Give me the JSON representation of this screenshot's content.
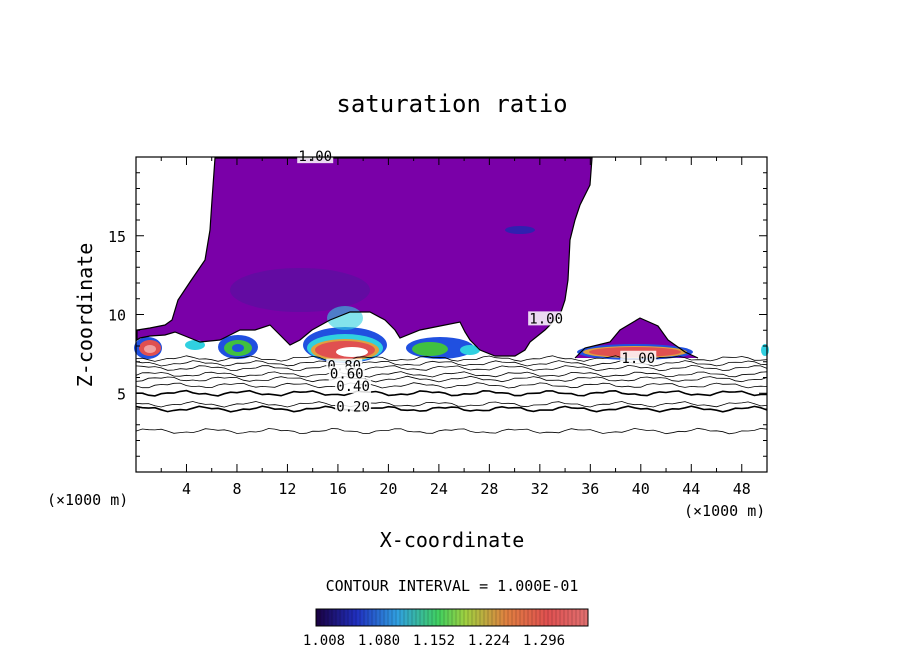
{
  "chart_data": {
    "type": "contour",
    "title": "saturation ratio",
    "xlabel": "X-coordinate",
    "ylabel": "Z-coordinate",
    "x_unit_left": "(×1000 m)",
    "x_unit_right": "(×1000 m)",
    "xlim": [
      0,
      50
    ],
    "ylim": [
      0,
      20
    ],
    "x_ticks": [
      4,
      8,
      12,
      16,
      20,
      24,
      28,
      32,
      36,
      40,
      44,
      48
    ],
    "y_ticks": [
      5,
      10,
      15
    ],
    "contour_interval_text": "CONTOUR INTERVAL = 1.000E-01",
    "colorbar": {
      "tick_labels": [
        "1.008",
        "1.080",
        "1.152",
        "1.224",
        "1.296"
      ],
      "colors": [
        "#1a0040",
        "#2040c0",
        "#30a0e0",
        "#40d060",
        "#a0e040",
        "#e0a040",
        "#e05050",
        "#e07070"
      ]
    },
    "contour_labels": [
      {
        "text": "1.00",
        "x": 14.2,
        "y": 19.8
      },
      {
        "text": "1.00",
        "x": 32.5,
        "y": 9.5
      },
      {
        "text": "1.00",
        "x": 39.8,
        "y": 7.0
      },
      {
        "text": "0.80",
        "x": 16.5,
        "y": 6.5
      },
      {
        "text": "0.60",
        "x": 16.7,
        "y": 6.0
      },
      {
        "text": "0.40",
        "x": 17.2,
        "y": 5.2
      },
      {
        "text": "0.20",
        "x": 17.2,
        "y": 3.9
      }
    ],
    "contour_levels": [
      0.2,
      0.4,
      0.6,
      0.8,
      1.0
    ],
    "region_colors": {
      "cloud": "#7a00a8",
      "cloud_dark": "#5a10a0",
      "blue": "#2050e0",
      "cyan": "#30d0e0",
      "green": "#40c040",
      "red": "#e05050",
      "light_red": "#f0a0a0"
    }
  }
}
